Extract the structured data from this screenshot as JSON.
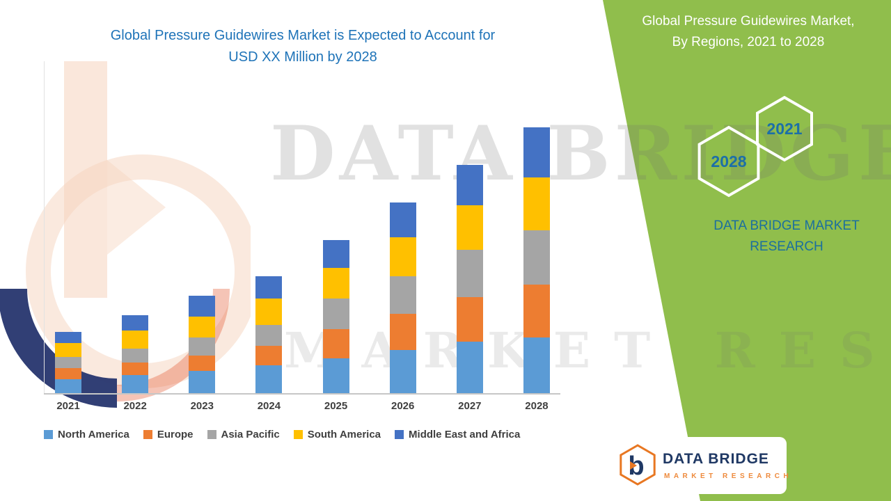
{
  "title": {
    "line1": "Global Pressure Guidewires Market is Expected to Account for",
    "line2": "USD XX Million by 2028"
  },
  "watermark": {
    "line1": "DATA BRIDGE",
    "line2": "MARKET RESEARCH"
  },
  "side_panel": {
    "title_line1": "Global Pressure Guidewires Market,",
    "title_line2": "By Regions, 2021 to 2028",
    "hexagons": {
      "back_label": "2028",
      "front_label": "2021"
    },
    "brand_line1": "DATA BRIDGE MARKET",
    "brand_line2": "RESEARCH",
    "background_color": "#90be4c",
    "brand_text_color": "#1b6f9e",
    "hexagon_outline_color": "#ffffff"
  },
  "footer_logo": {
    "letter": "b",
    "name": "DATA BRIDGE",
    "tagline": "MARKET RESEARCH",
    "hexagon_color": "#e87722",
    "name_color": "#1f3864"
  },
  "colors": {
    "title_blue": "#1e73b8",
    "axis_text": "#3f3f3f"
  },
  "chart_data": {
    "type": "bar",
    "stacked": true,
    "title": "Global Pressure Guidewires Market is Expected to Account for USD XX Million by 2028",
    "xlabel": "",
    "ylabel": "",
    "grid": false,
    "legend_position": "bottom",
    "y_axis_shown": false,
    "value_note": "Y-axis values are not labeled in the source (USD XX Million); series values are estimated relative units read from bar heights.",
    "categories": [
      "2021",
      "2022",
      "2023",
      "2024",
      "2025",
      "2026",
      "2027",
      "2028"
    ],
    "series": [
      {
        "name": "North America",
        "color": "#5b9bd5",
        "values": [
          5,
          6.5,
          8,
          10,
          12.5,
          15.5,
          18.5,
          20
        ]
      },
      {
        "name": "Europe",
        "color": "#ed7d31",
        "values": [
          4,
          4.5,
          5.5,
          7,
          10.5,
          13,
          16,
          19
        ]
      },
      {
        "name": "Asia Pacific",
        "color": "#a5a5a5",
        "values": [
          4,
          5,
          6.5,
          7.5,
          11,
          13.5,
          17,
          19.5
        ]
      },
      {
        "name": "South America",
        "color": "#ffc000",
        "values": [
          5,
          6.5,
          7.5,
          9.5,
          11,
          14,
          16,
          19
        ]
      },
      {
        "name": "Middle East and Africa",
        "color": "#4472c4",
        "values": [
          4,
          5.5,
          7.5,
          8,
          10,
          12.5,
          14.5,
          18
        ]
      }
    ],
    "totals_estimated": [
      22,
      28,
      35,
      42,
      55,
      68.5,
      82,
      95.5
    ],
    "ylim": [
      0,
      100
    ]
  }
}
